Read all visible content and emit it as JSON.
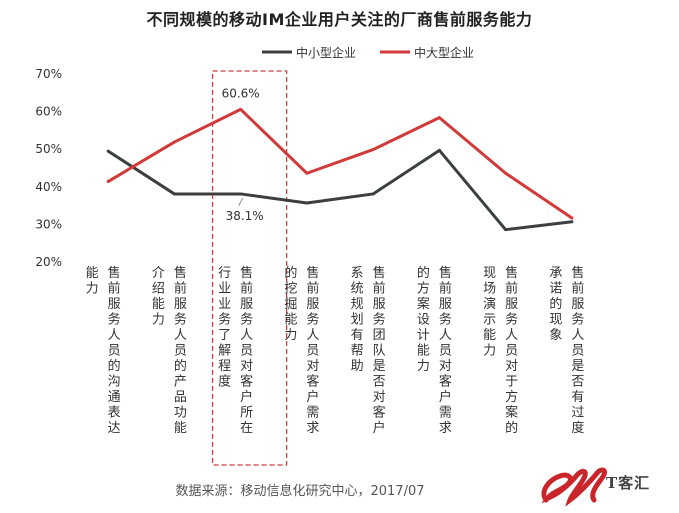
{
  "chart_data": {
    "type": "line",
    "title": "不同规模的移动IM企业用户关注的厂商售前服务能力",
    "categories": [
      "售前服务人员的沟通表达能力",
      "售前服务人员的产品功能介绍能力",
      "售前服务人员对客户所在行业业务了解程度",
      "售前服务人员对客户需求的挖掘能力",
      "售前服务团队是否对客户系统规划有帮助",
      "售前服务人员对客户需求的方案设计能力",
      "售前服务人员对于方案的现场演示能力",
      "售前服务人员是否有过度承诺的现象"
    ],
    "series": [
      {
        "name": "中小型企业",
        "color": "#3b3f3f",
        "values": [
          49.5,
          38.1,
          38.1,
          35.7,
          38.1,
          49.7,
          28.6,
          30.7
        ]
      },
      {
        "name": "中大型企业",
        "color": "#d23a3a",
        "values": [
          41.4,
          51.9,
          60.6,
          43.6,
          49.9,
          58.4,
          43.6,
          31.7
        ]
      }
    ],
    "ylim": [
      20,
      70
    ],
    "yticks": [
      "20%",
      "30%",
      "40%",
      "50%",
      "60%",
      "70%"
    ],
    "legend_position": "top",
    "highlight_category_index": 2,
    "annotations": [
      "60.6%",
      "38.1%"
    ]
  },
  "source": "数据来源：移动信息化研究中心，2017/07",
  "logo_text": "T客汇"
}
